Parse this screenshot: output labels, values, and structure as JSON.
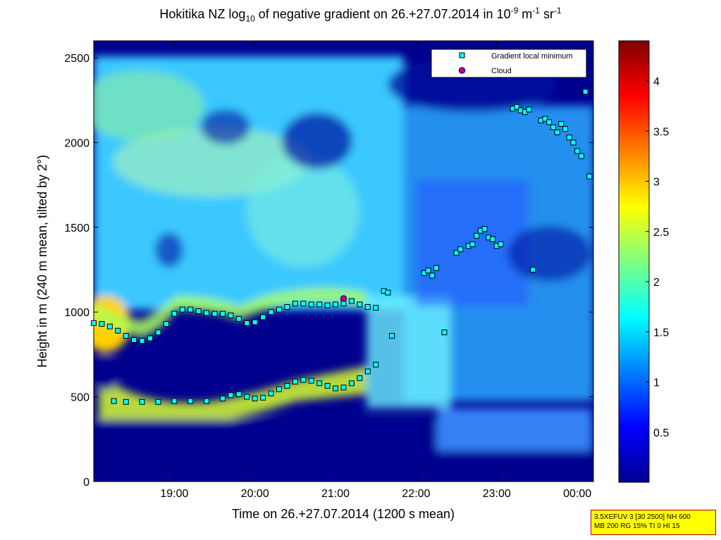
{
  "title": {
    "pre": "Hokitika NZ log",
    "sub": "10",
    "mid": " of negative gradient on 26.+27.07.2014 in 10",
    "sup1": "-9",
    "unit1": " m",
    "sup2": "-1",
    "unit2": " sr",
    "sup3": "-1"
  },
  "info_box": [
    "3.5XEFUV 3 [30 2500] NH 600",
    "MB 200 RG 15% TI 0 HI 15"
  ],
  "chart_data": {
    "type": "heatmap",
    "xlabel": "Time on 26.+27.07.2014 (1200 s mean)",
    "ylabel": "Height in m (240 m mean, tilted by 2°)",
    "x_unit": "hours",
    "xlim": [
      18.0,
      24.2
    ],
    "ylim": [
      0,
      2600
    ],
    "x_ticks": [
      19,
      20,
      21,
      22,
      23,
      24.0
    ],
    "x_tick_labels": [
      "19:00",
      "20:00",
      "21:00",
      "22:00",
      "23:00",
      "00:00"
    ],
    "y_ticks": [
      0,
      500,
      1000,
      1500,
      2000,
      2500
    ],
    "colorbar": {
      "range": [
        0,
        4.4
      ],
      "ticks": [
        0.5,
        1,
        1.5,
        2,
        2.5,
        3,
        3.5,
        4
      ],
      "colormap": "jet"
    },
    "legend": {
      "placement": "top-right",
      "entries": [
        {
          "name": "Gradient local minimum",
          "color": "#00ffff",
          "marker": "square"
        },
        {
          "name": "Cloud",
          "color": "#ff0000",
          "marker": "circle"
        }
      ]
    },
    "series": [
      {
        "name": "Gradient local minimum",
        "layer": "upper",
        "x": [
          18.0,
          18.1,
          18.2,
          18.3,
          18.4,
          18.5,
          18.6,
          18.7,
          18.8,
          18.9,
          19.0,
          19.1,
          19.2,
          19.3,
          19.4,
          19.5,
          19.6,
          19.7,
          19.8,
          19.9,
          20.0,
          20.1,
          20.2,
          20.3,
          20.4,
          20.5,
          20.6,
          20.7,
          20.8,
          20.9,
          21.0,
          21.1,
          21.2,
          21.3,
          21.4,
          21.5
        ],
        "y": [
          935,
          930,
          915,
          890,
          860,
          835,
          830,
          845,
          880,
          930,
          990,
          1015,
          1015,
          1005,
          995,
          990,
          990,
          980,
          960,
          935,
          940,
          970,
          1000,
          1015,
          1030,
          1050,
          1050,
          1045,
          1045,
          1040,
          1045,
          1050,
          1065,
          1045,
          1030,
          1025
        ]
      },
      {
        "name": "Gradient local minimum",
        "layer": "lower",
        "x": [
          18.25,
          18.4,
          18.6,
          18.8,
          19.0,
          19.2,
          19.4,
          19.6,
          19.7,
          19.8,
          19.9,
          20.0,
          20.1,
          20.2,
          20.3,
          20.4,
          20.5,
          20.6,
          20.7,
          20.8,
          20.9,
          21.0,
          21.1,
          21.2,
          21.3,
          21.4,
          21.5
        ],
        "y": [
          475,
          470,
          470,
          470,
          475,
          475,
          475,
          490,
          510,
          515,
          500,
          490,
          495,
          520,
          545,
          565,
          590,
          600,
          595,
          580,
          565,
          550,
          555,
          580,
          610,
          650,
          690
        ]
      },
      {
        "name": "Gradient local minimum",
        "layer": "scattered",
        "x": [
          21.6,
          21.65,
          21.7,
          22.1,
          22.15,
          22.2,
          22.25,
          22.35,
          22.5,
          22.55,
          22.65,
          22.7,
          22.75,
          22.8,
          22.85,
          22.9,
          22.95,
          23.0,
          23.05,
          23.2,
          23.25,
          23.3,
          23.35,
          23.4,
          23.45,
          23.55,
          23.6,
          23.65,
          23.7,
          23.75,
          23.8,
          23.85,
          23.9,
          23.95,
          24.0,
          24.05,
          24.1,
          24.15
        ],
        "y": [
          1125,
          1115,
          860,
          1230,
          1245,
          1215,
          1260,
          880,
          1350,
          1370,
          1390,
          1400,
          1450,
          1480,
          1490,
          1440,
          1430,
          1390,
          1400,
          2200,
          2210,
          2190,
          2180,
          2195,
          1250,
          2130,
          2140,
          2120,
          2090,
          2060,
          2110,
          2080,
          2030,
          2000,
          1950,
          1920,
          2300,
          1800
        ]
      },
      {
        "name": "Cloud",
        "x": [
          21.1
        ],
        "y": [
          1080
        ]
      }
    ]
  }
}
